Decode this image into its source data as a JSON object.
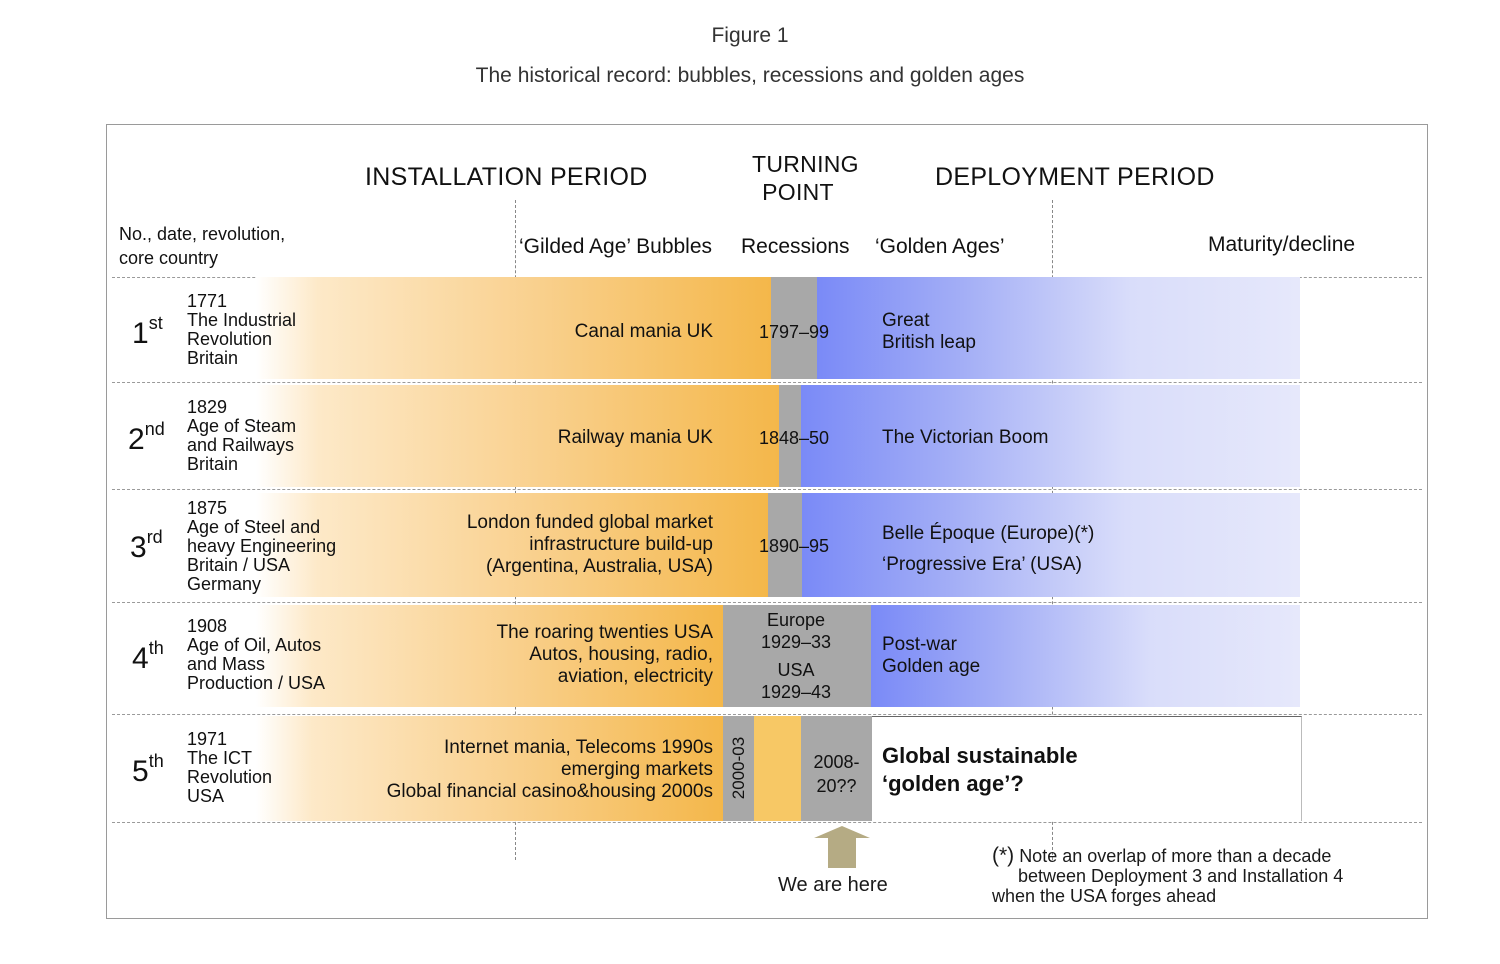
{
  "figure": {
    "label": "Figure 1",
    "title": "The historical record: bubbles, recessions and golden ages"
  },
  "headers": {
    "installation": "INSTALLATION  PERIOD",
    "turning_line1": "TURNING",
    "turning_line2": "POINT",
    "deployment": "DEPLOYMENT  PERIOD"
  },
  "columns": {
    "row_label_line1": "No., date, revolution,",
    "row_label_line2": "core country",
    "bubbles": "‘Gilded Age’ Bubbles",
    "recessions": "Recessions",
    "golden_ages": "‘Golden Ages’",
    "maturity": "Maturity/decline"
  },
  "rows": [
    {
      "no": "1",
      "suffix": "st",
      "year": "1771",
      "rev1": "The Industrial",
      "rev2": "Revolution",
      "rev3": "Britain",
      "rev4": "",
      "bubble1": "Canal  mania  UK",
      "bubble2": "",
      "bubble3": "",
      "recession": "1797–99",
      "golden1": "Great",
      "golden2": "British leap"
    },
    {
      "no": "2",
      "suffix": "nd",
      "year": "1829",
      "rev1": "Age of Steam",
      "rev2": "and Railways",
      "rev3": "Britain",
      "rev4": "",
      "bubble1": "Railway mania  UK",
      "bubble2": "",
      "bubble3": "",
      "recession": "1848–50",
      "golden1": "The Victorian  Boom",
      "golden2": ""
    },
    {
      "no": "3",
      "suffix": "rd",
      "year": "1875",
      "rev1": "Age of Steel and",
      "rev2": "heavy Engineering",
      "rev3": "Britain / USA",
      "rev4": "Germany",
      "bubble1": "London funded global market",
      "bubble2": "infrastructure  build-up",
      "bubble3": "(Argentina, Australia, USA)",
      "recession": "1890–95",
      "golden1": "Belle Époque (Europe)(*)",
      "golden2": "‘Progressive Era’ (USA)"
    },
    {
      "no": "4",
      "suffix": "th",
      "year": "1908",
      "rev1": "Age of Oil, Autos",
      "rev2": "and Mass",
      "rev3": "Production / USA",
      "rev4": "",
      "bubble1": "The roaring  twenties USA",
      "bubble2": "Autos, housing, radio,",
      "bubble3": "aviation, electricity",
      "rec_europe": "Europe",
      "rec_europe_years": "1929–33",
      "rec_usa": "USA",
      "rec_usa_years": "1929–43",
      "golden1": "Post-war",
      "golden2": "Golden age"
    },
    {
      "no": "5",
      "suffix": "th",
      "year": "1971",
      "rev1": "The ICT",
      "rev2": "Revolution",
      "rev3": "USA",
      "rev4": "",
      "bubble1": "Internet mania, Telecoms 1990s",
      "bubble2": "emerging markets",
      "bubble3": "Global financial casino&housing 2000s",
      "recession_a": "2000-03",
      "recession_b1": "2008-",
      "recession_b2": "20??",
      "golden1": "Global sustainable",
      "golden2": "‘golden age’?"
    }
  ],
  "annotations": {
    "we_are_here": "We are here",
    "note_marker": "(*)",
    "note_line1": "Note an overlap of more than a decade",
    "note_line2": "between Deployment 3 and Installation 4",
    "note_line3": "when the USA forges ahead"
  },
  "colors": {
    "installation_gradient_end": "#f4b74a",
    "recession_grey": "#a8a8a8",
    "deployment_gradient_start": "#7a8af7",
    "arrow": "#b5ab84"
  }
}
